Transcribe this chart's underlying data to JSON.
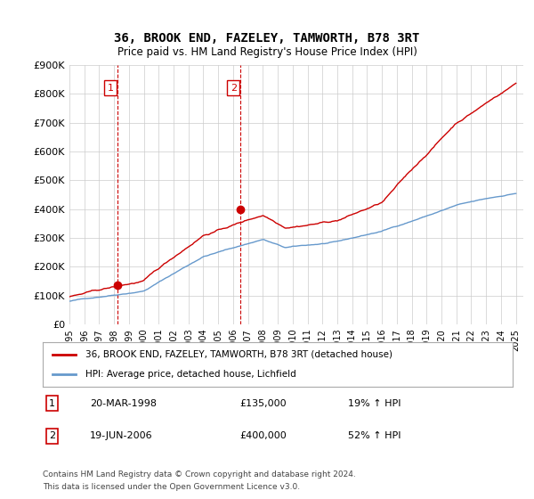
{
  "title": "36, BROOK END, FAZELEY, TAMWORTH, B78 3RT",
  "subtitle": "Price paid vs. HM Land Registry's House Price Index (HPI)",
  "ylabel_ticks": [
    "£0",
    "£100K",
    "£200K",
    "£300K",
    "£400K",
    "£500K",
    "£600K",
    "£700K",
    "£800K",
    "£900K"
  ],
  "ylim": [
    0,
    900000
  ],
  "xlim_start": 1995.0,
  "xlim_end": 2025.5,
  "transactions": [
    {
      "label": "1",
      "date": "20-MAR-1998",
      "price": 135000,
      "price_str": "£135,000",
      "hpi_note": "19% ↑ HPI",
      "year": 1998.22
    },
    {
      "label": "2",
      "date": "19-JUN-2006",
      "price": 400000,
      "price_str": "£400,000",
      "hpi_note": "52% ↑ HPI",
      "year": 2006.47
    }
  ],
  "legend_line1": "36, BROOK END, FAZELEY, TAMWORTH, B78 3RT (detached house)",
  "legend_line2": "HPI: Average price, detached house, Lichfield",
  "footnote1": "Contains HM Land Registry data © Crown copyright and database right 2024.",
  "footnote2": "This data is licensed under the Open Government Licence v3.0.",
  "red_color": "#cc0000",
  "blue_color": "#6699cc",
  "background_color": "#ffffff",
  "grid_color": "#cccccc"
}
